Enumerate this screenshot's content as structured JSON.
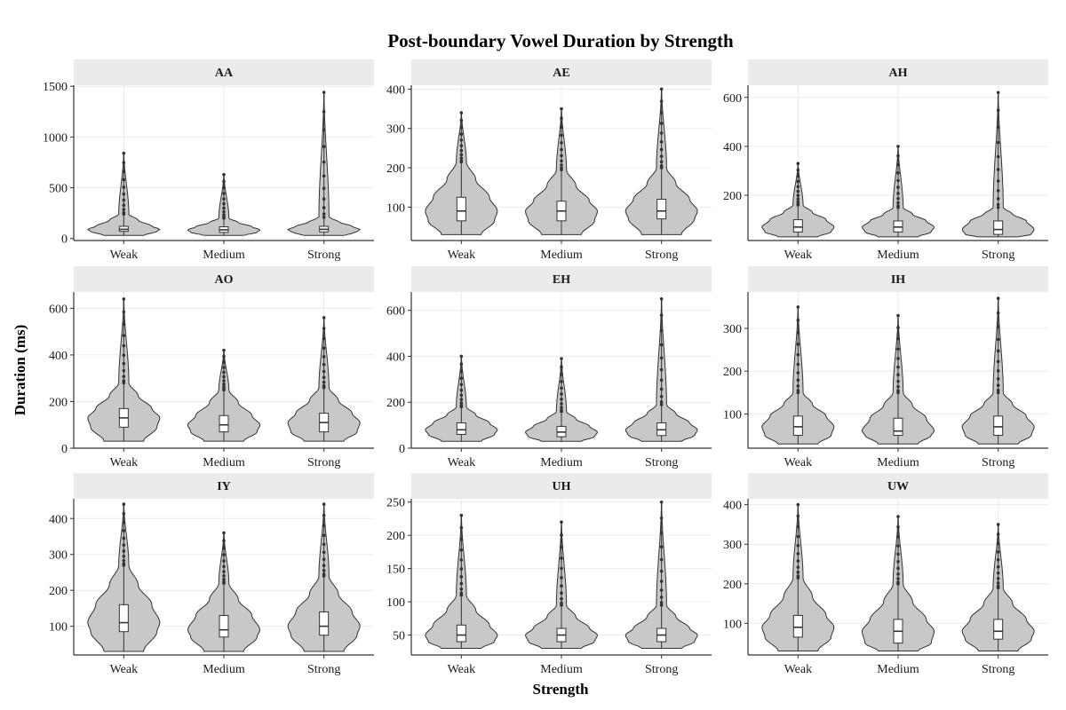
{
  "chart_data": {
    "type": "violin",
    "title": "Post-boundary Vowel Duration by Strength",
    "xlabel": "Strength",
    "ylabel": "Duration (ms)",
    "categories": [
      "Weak",
      "Medium",
      "Strong"
    ],
    "grid": true,
    "colors": {
      "violin_fill": "#c8c8c8",
      "outline": "#333333",
      "box_fill": "#ffffff",
      "strip_bg": "#ebebeb",
      "grid": "#ebebeb"
    },
    "panels": [
      {
        "name": "AA",
        "ylim": [
          -20,
          1510
        ],
        "yticks": [
          0,
          500,
          1000,
          1500
        ],
        "groups": [
          {
            "category": "Weak",
            "min": 30,
            "q1": 70,
            "median": 90,
            "q3": 120,
            "whisker_high": 240,
            "max": 840
          },
          {
            "category": "Medium",
            "min": 30,
            "q1": 60,
            "median": 85,
            "q3": 115,
            "whisker_high": 200,
            "max": 630
          },
          {
            "category": "Strong",
            "min": 30,
            "q1": 65,
            "median": 90,
            "q3": 120,
            "whisker_high": 210,
            "max": 1440
          }
        ]
      },
      {
        "name": "AE",
        "ylim": [
          15,
          410
        ],
        "yticks": [
          100,
          200,
          300,
          400
        ],
        "groups": [
          {
            "category": "Weak",
            "min": 30,
            "q1": 65,
            "median": 90,
            "q3": 125,
            "whisker_high": 215,
            "max": 340
          },
          {
            "category": "Medium",
            "min": 30,
            "q1": 65,
            "median": 90,
            "q3": 115,
            "whisker_high": 195,
            "max": 350
          },
          {
            "category": "Strong",
            "min": 30,
            "q1": 70,
            "median": 90,
            "q3": 120,
            "whisker_high": 200,
            "max": 400
          }
        ]
      },
      {
        "name": "AH",
        "ylim": [
          15,
          650
        ],
        "yticks": [
          200,
          400,
          600
        ],
        "groups": [
          {
            "category": "Weak",
            "min": 30,
            "q1": 50,
            "median": 70,
            "q3": 100,
            "whisker_high": 160,
            "max": 330
          },
          {
            "category": "Medium",
            "min": 30,
            "q1": 50,
            "median": 70,
            "q3": 95,
            "whisker_high": 150,
            "max": 400
          },
          {
            "category": "Strong",
            "min": 30,
            "q1": 40,
            "median": 60,
            "q3": 95,
            "whisker_high": 150,
            "max": 620
          }
        ]
      },
      {
        "name": "AO",
        "ylim": [
          0,
          670
        ],
        "yticks": [
          0,
          200,
          400,
          600
        ],
        "groups": [
          {
            "category": "Weak",
            "min": 30,
            "q1": 90,
            "median": 130,
            "q3": 170,
            "whisker_high": 280,
            "max": 640
          },
          {
            "category": "Medium",
            "min": 30,
            "q1": 70,
            "median": 100,
            "q3": 140,
            "whisker_high": 250,
            "max": 420
          },
          {
            "category": "Strong",
            "min": 30,
            "q1": 70,
            "median": 110,
            "q3": 150,
            "whisker_high": 260,
            "max": 560
          }
        ]
      },
      {
        "name": "EH",
        "ylim": [
          0,
          680
        ],
        "yticks": [
          0,
          200,
          400,
          600
        ],
        "groups": [
          {
            "category": "Weak",
            "min": 30,
            "q1": 60,
            "median": 80,
            "q3": 110,
            "whisker_high": 180,
            "max": 400
          },
          {
            "category": "Medium",
            "min": 30,
            "q1": 50,
            "median": 70,
            "q3": 95,
            "whisker_high": 160,
            "max": 390
          },
          {
            "category": "Strong",
            "min": 30,
            "q1": 55,
            "median": 80,
            "q3": 110,
            "whisker_high": 190,
            "max": 650
          }
        ]
      },
      {
        "name": "IH",
        "ylim": [
          20,
          385
        ],
        "yticks": [
          100,
          200,
          300
        ],
        "groups": [
          {
            "category": "Weak",
            "min": 30,
            "q1": 50,
            "median": 70,
            "q3": 95,
            "whisker_high": 150,
            "max": 350
          },
          {
            "category": "Medium",
            "min": 30,
            "q1": 50,
            "median": 60,
            "q3": 90,
            "whisker_high": 150,
            "max": 330
          },
          {
            "category": "Strong",
            "min": 30,
            "q1": 50,
            "median": 70,
            "q3": 95,
            "whisker_high": 150,
            "max": 370
          }
        ]
      },
      {
        "name": "IY",
        "ylim": [
          20,
          455
        ],
        "yticks": [
          100,
          200,
          300,
          400
        ],
        "groups": [
          {
            "category": "Weak",
            "min": 30,
            "q1": 85,
            "median": 110,
            "q3": 160,
            "whisker_high": 270,
            "max": 440
          },
          {
            "category": "Medium",
            "min": 30,
            "q1": 70,
            "median": 90,
            "q3": 130,
            "whisker_high": 220,
            "max": 360
          },
          {
            "category": "Strong",
            "min": 30,
            "q1": 75,
            "median": 100,
            "q3": 140,
            "whisker_high": 240,
            "max": 440
          }
        ]
      },
      {
        "name": "UH",
        "ylim": [
          20,
          255
        ],
        "yticks": [
          50,
          100,
          150,
          200,
          250
        ],
        "groups": [
          {
            "category": "Weak",
            "min": 30,
            "q1": 40,
            "median": 50,
            "q3": 65,
            "whisker_high": 110,
            "max": 230
          },
          {
            "category": "Medium",
            "min": 30,
            "q1": 40,
            "median": 50,
            "q3": 60,
            "whisker_high": 95,
            "max": 220
          },
          {
            "category": "Strong",
            "min": 30,
            "q1": 40,
            "median": 50,
            "q3": 60,
            "whisker_high": 95,
            "max": 250
          }
        ]
      },
      {
        "name": "UW",
        "ylim": [
          20,
          415
        ],
        "yticks": [
          100,
          200,
          300,
          400
        ],
        "groups": [
          {
            "category": "Weak",
            "min": 30,
            "q1": 65,
            "median": 90,
            "q3": 120,
            "whisker_high": 215,
            "max": 400
          },
          {
            "category": "Medium",
            "min": 30,
            "q1": 50,
            "median": 80,
            "q3": 110,
            "whisker_high": 200,
            "max": 370
          },
          {
            "category": "Strong",
            "min": 30,
            "q1": 60,
            "median": 80,
            "q3": 110,
            "whisker_high": 190,
            "max": 350
          }
        ]
      }
    ]
  }
}
